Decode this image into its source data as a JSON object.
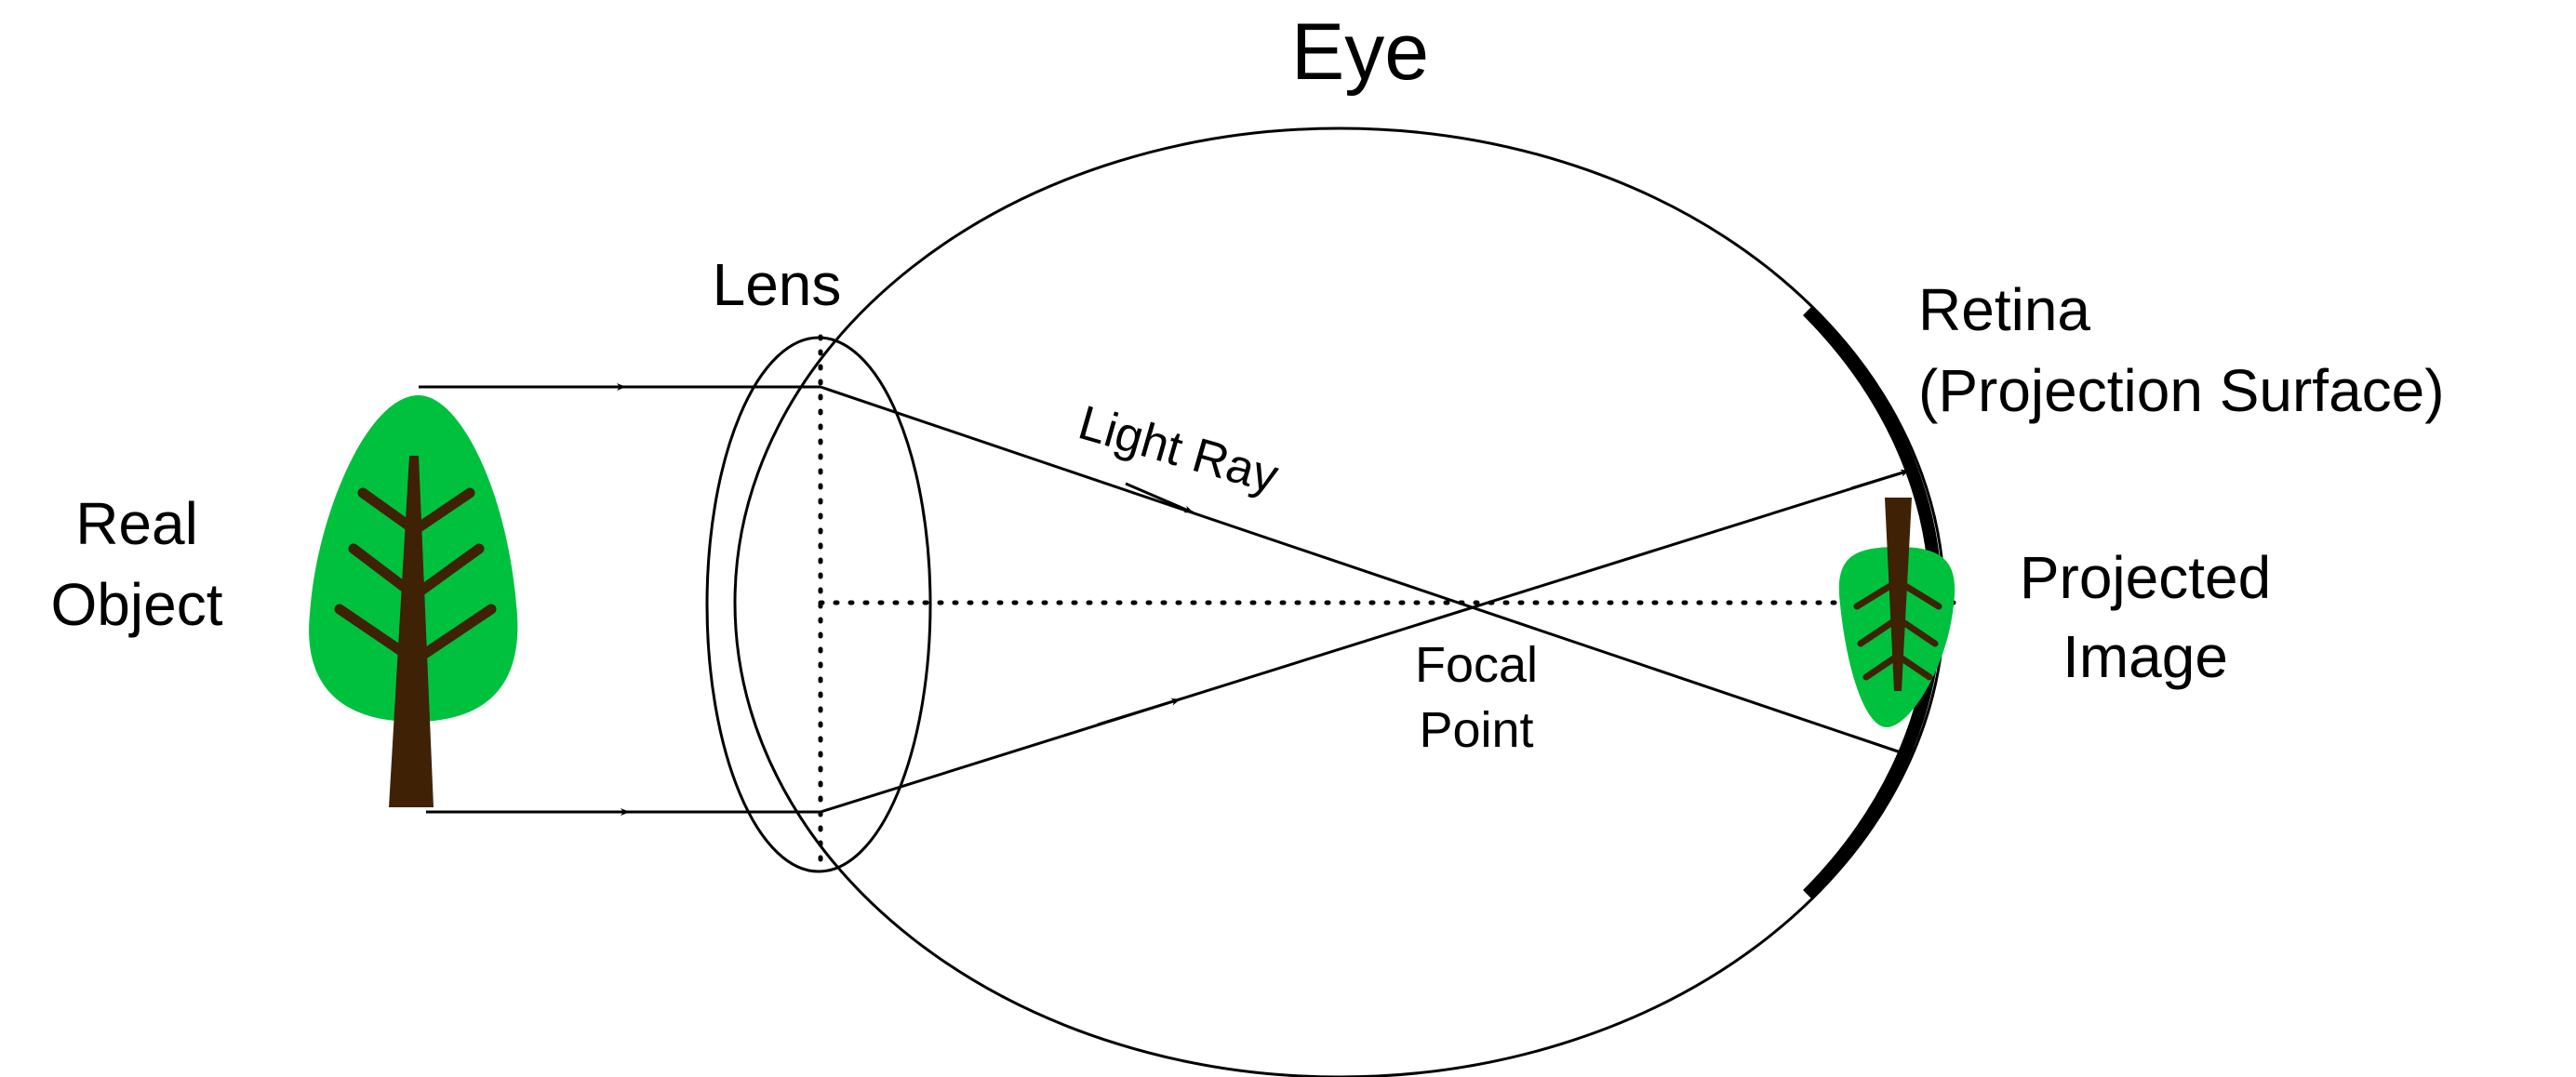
{
  "title": "Eye",
  "labels": {
    "lens": "Lens",
    "real_object_line1": "Real",
    "real_object_line2": "Object",
    "retina_line1": "Retina",
    "retina_line2": "(Projection Surface)",
    "projected_line1": "Projected",
    "projected_line2": "Image",
    "light_ray": "Light Ray",
    "focal_line1": "Focal",
    "focal_line2": "Point"
  },
  "colors": {
    "foliage": "#00c13d",
    "trunk": "#3f2206",
    "line": "#000000"
  }
}
